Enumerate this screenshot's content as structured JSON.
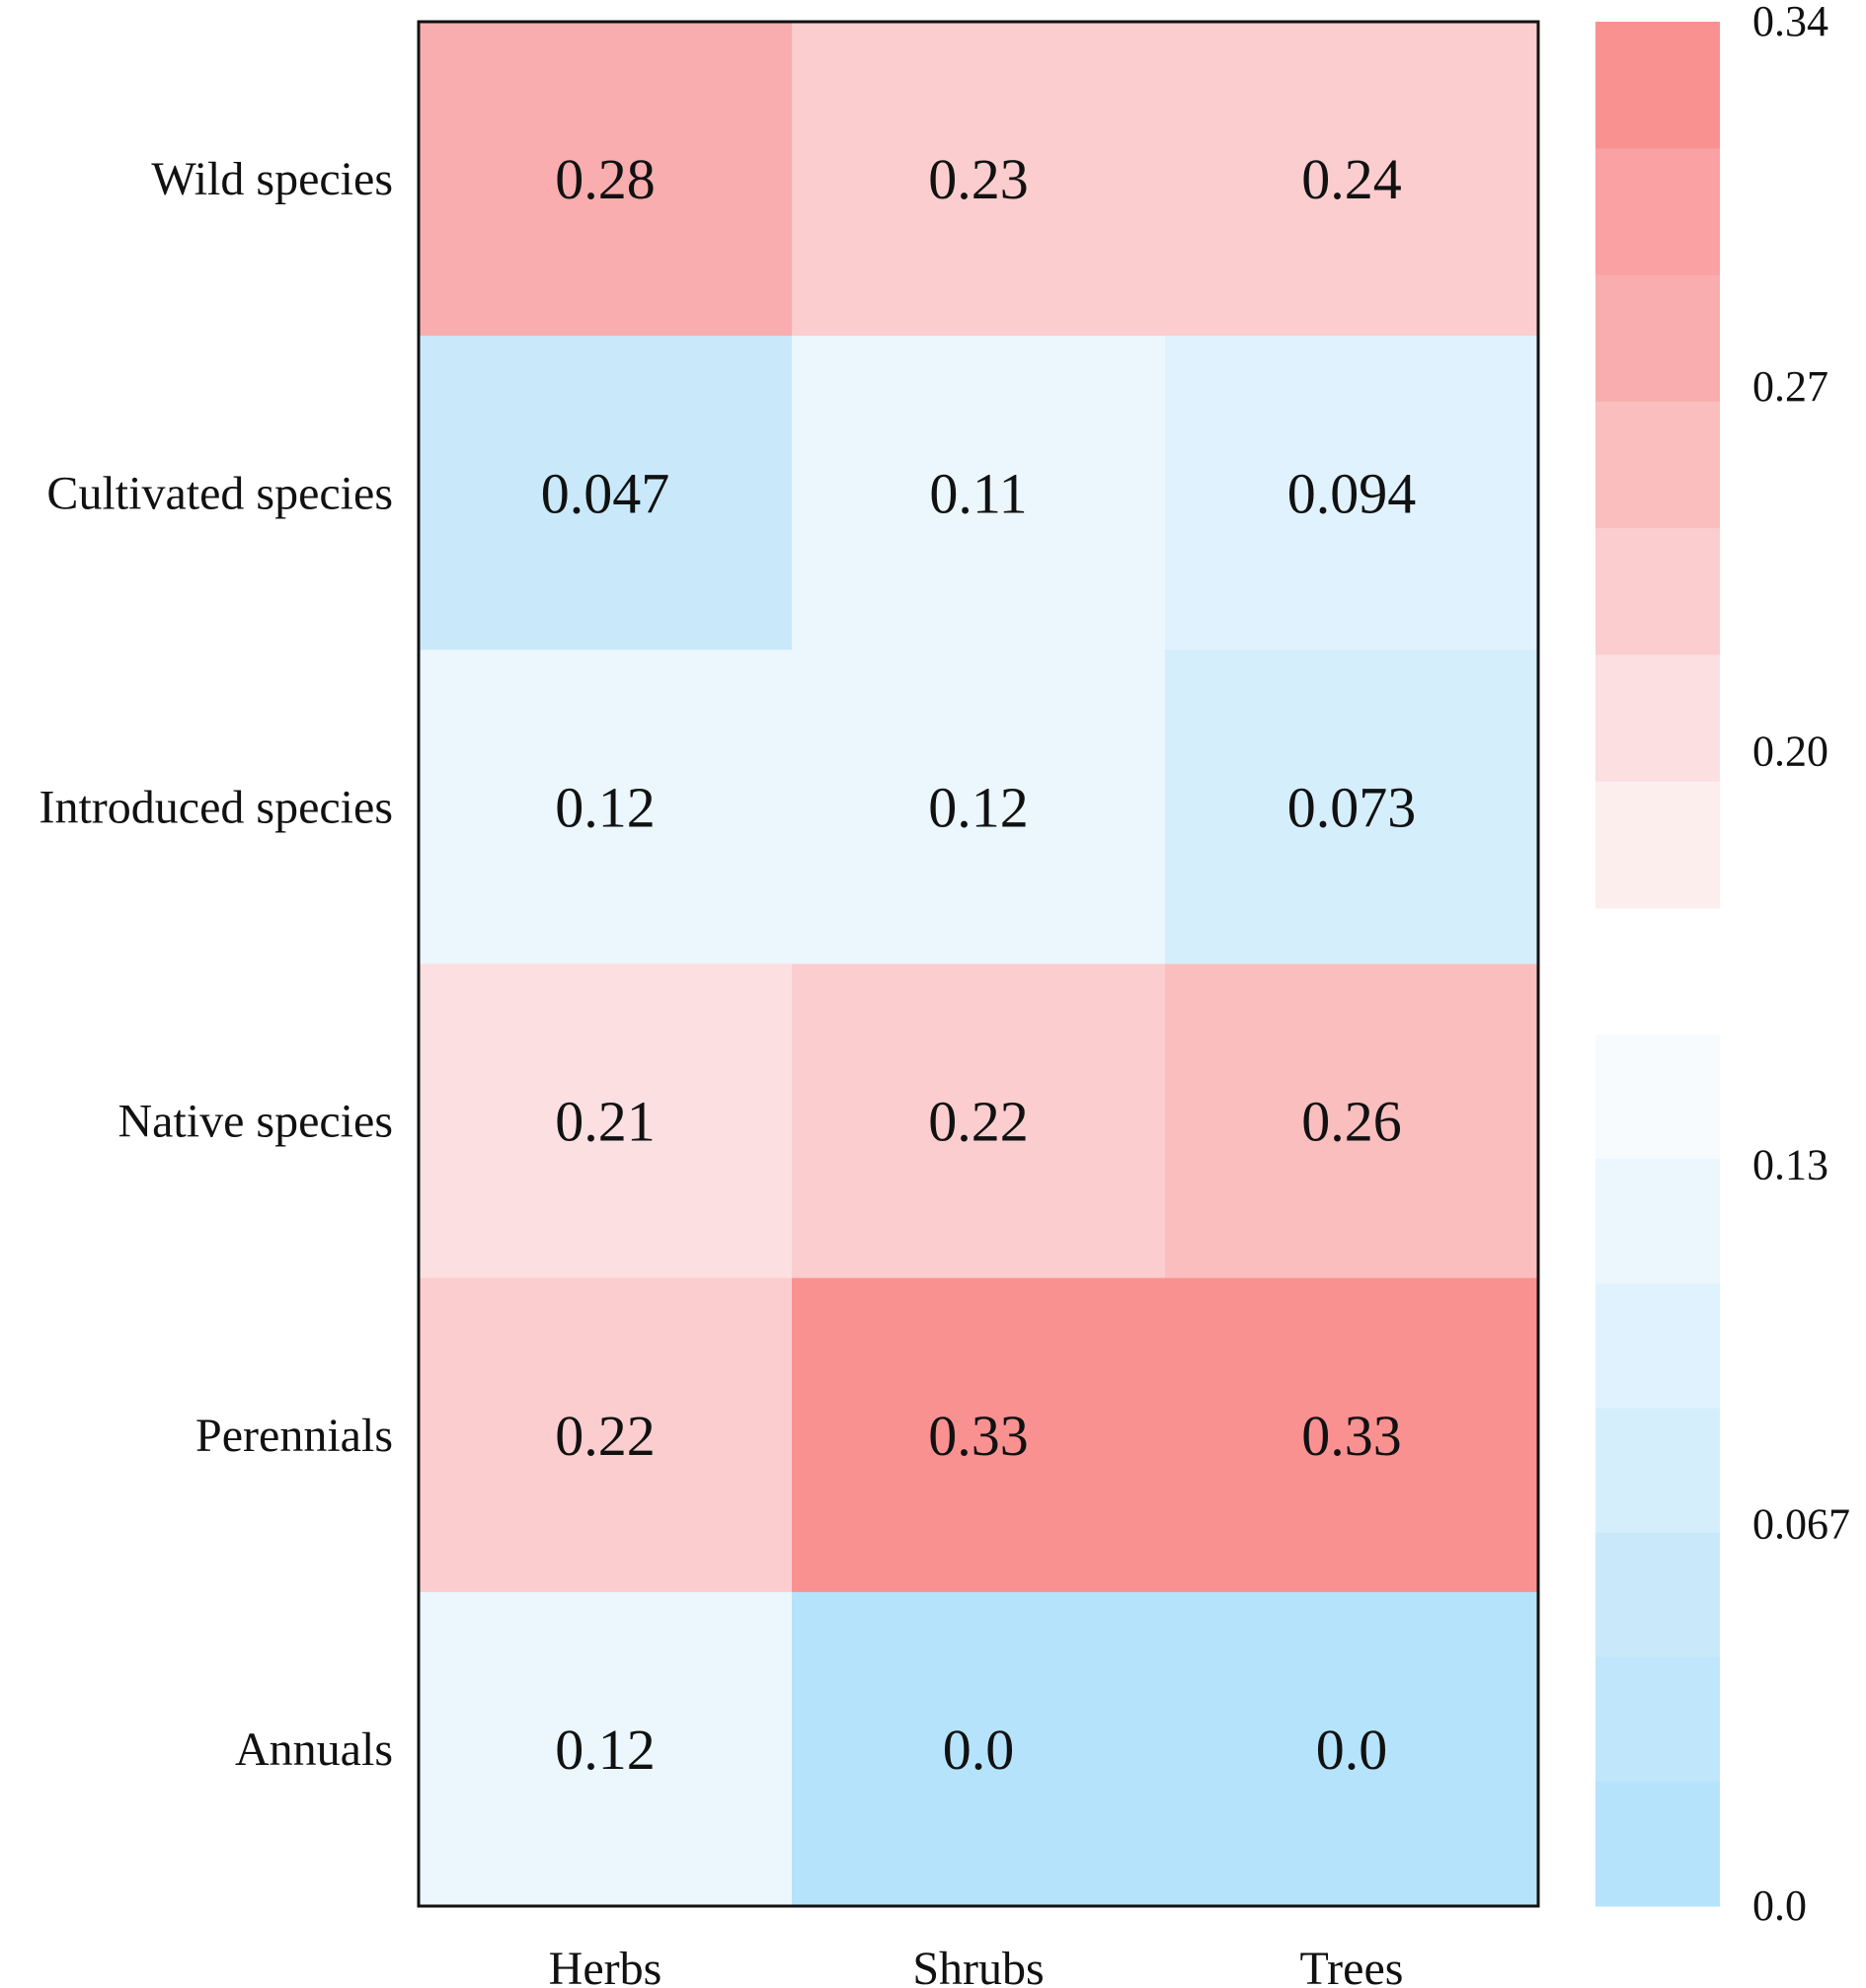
{
  "chart_data": {
    "type": "heatmap",
    "title": "",
    "xlabel": "",
    "ylabel": "",
    "columns": [
      "Herbs",
      "Shrubs",
      "Trees"
    ],
    "rows": [
      "Wild species",
      "Cultivated species",
      "Introduced species",
      "Native species",
      "Perennials",
      "Annuals"
    ],
    "values": [
      [
        "0.28",
        "0.23",
        "0.24"
      ],
      [
        "0.047",
        "0.11",
        "0.094"
      ],
      [
        "0.12",
        "0.12",
        "0.073"
      ],
      [
        "0.21",
        "0.22",
        "0.26"
      ],
      [
        "0.22",
        "0.33",
        "0.33"
      ],
      [
        "0.12",
        "0.0",
        "0.0"
      ]
    ],
    "colorbar": {
      "upper": {
        "range": [
          0.17,
          0.34
        ],
        "ticks": [
          "0.34",
          "0.27",
          "0.20"
        ],
        "tick_values": [
          0.34,
          0.27,
          0.2
        ],
        "colors_top_to_bottom": [
          "#fa9191",
          "#f9a1a3",
          "#f9adae",
          "#fabebe",
          "#fbcdcf",
          "#fcdfe0",
          "#fdeeee"
        ]
      },
      "lower": {
        "range": [
          0.0,
          0.153
        ],
        "ticks": [
          "0.13",
          "0.067",
          "0.0"
        ],
        "tick_values": [
          0.13,
          0.067,
          0.0
        ],
        "colors_top_to_bottom": [
          "#f7fbfe",
          "#ebf6fd",
          "#e0f2fd",
          "#d5eefc",
          "#c9e9fb",
          "#c0e6fb",
          "#b5e3fb"
        ]
      }
    }
  }
}
